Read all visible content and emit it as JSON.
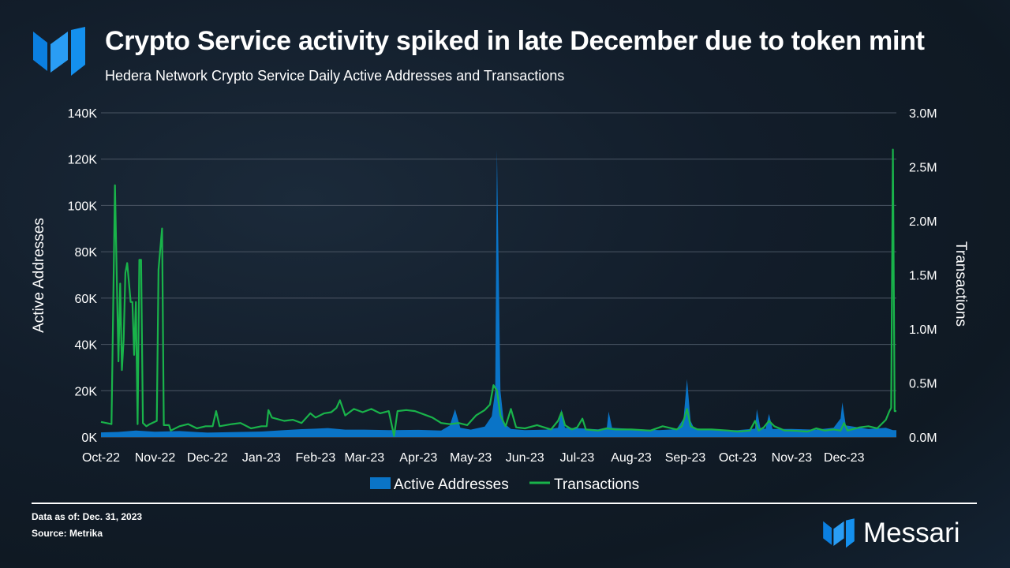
{
  "header": {
    "title": "Crypto Service activity spiked in late December due to token mint",
    "subtitle": "Hedera Network Crypto Service Daily Active Addresses and Transactions"
  },
  "footer": {
    "data_as_of": "Data as of: Dec. 31, 2023",
    "source": "Source: Metrika",
    "brand": "Messari"
  },
  "colors": {
    "active_addresses": "#0a74c7",
    "transactions": "#19b34a",
    "grid": "#4a5563",
    "text": "#ffffff"
  },
  "chart_data": {
    "type": "area+line",
    "title": "Hedera Network Crypto Service Daily Active Addresses and Transactions",
    "xlabel": "",
    "ylabel": "Active Addresses",
    "y2label": "Transactions",
    "ylim": [
      0,
      140000
    ],
    "y2lim": [
      0,
      3000000
    ],
    "yticks": [
      "0K",
      "20K",
      "40K",
      "60K",
      "80K",
      "100K",
      "120K",
      "140K"
    ],
    "y2ticks": [
      "0.0M",
      "0.5M",
      "1.0M",
      "1.5M",
      "2.0M",
      "2.5M",
      "3.0M"
    ],
    "x_range": [
      0,
      456
    ],
    "xticks": [
      {
        "label": "Oct-22",
        "x": 0
      },
      {
        "label": "Nov-22",
        "x": 31
      },
      {
        "label": "Dec-22",
        "x": 61
      },
      {
        "label": "Jan-23",
        "x": 92
      },
      {
        "label": "Feb-23",
        "x": 123
      },
      {
        "label": "Mar-23",
        "x": 151
      },
      {
        "label": "Apr-23",
        "x": 182
      },
      {
        "label": "May-23",
        "x": 212
      },
      {
        "label": "Jun-23",
        "x": 243
      },
      {
        "label": "Jul-23",
        "x": 273
      },
      {
        "label": "Aug-23",
        "x": 304
      },
      {
        "label": "Sep-23",
        "x": 335
      },
      {
        "label": "Oct-23",
        "x": 365
      },
      {
        "label": "Nov-23",
        "x": 396
      },
      {
        "label": "Dec-23",
        "x": 426
      }
    ],
    "legend": "bottom-center",
    "series": [
      {
        "name": "Active Addresses",
        "axis": "left",
        "kind": "area",
        "points": [
          [
            0,
            2000
          ],
          [
            10,
            2200
          ],
          [
            20,
            2800
          ],
          [
            31,
            2300
          ],
          [
            45,
            2600
          ],
          [
            61,
            1900
          ],
          [
            75,
            2100
          ],
          [
            92,
            2400
          ],
          [
            105,
            3000
          ],
          [
            115,
            3400
          ],
          [
            123,
            3600
          ],
          [
            130,
            3900
          ],
          [
            140,
            3200
          ],
          [
            151,
            3200
          ],
          [
            165,
            3000
          ],
          [
            182,
            3100
          ],
          [
            195,
            2800
          ],
          [
            200,
            5000
          ],
          [
            203,
            12000
          ],
          [
            206,
            4000
          ],
          [
            212,
            3200
          ],
          [
            220,
            4500
          ],
          [
            224,
            9000
          ],
          [
            226,
            20000
          ],
          [
            227,
            124000
          ],
          [
            229,
            20000
          ],
          [
            231,
            6000
          ],
          [
            235,
            3500
          ],
          [
            243,
            3000
          ],
          [
            255,
            3200
          ],
          [
            262,
            4000
          ],
          [
            264,
            12000
          ],
          [
            266,
            4000
          ],
          [
            273,
            3800
          ],
          [
            285,
            3300
          ],
          [
            290,
            4200
          ],
          [
            291,
            11000
          ],
          [
            293,
            4000
          ],
          [
            304,
            3500
          ],
          [
            320,
            3000
          ],
          [
            330,
            3400
          ],
          [
            334,
            8000
          ],
          [
            336,
            25000
          ],
          [
            338,
            7000
          ],
          [
            340,
            3800
          ],
          [
            350,
            3100
          ],
          [
            365,
            3000
          ],
          [
            375,
            3600
          ],
          [
            376,
            12000
          ],
          [
            378,
            4000
          ],
          [
            381,
            3500
          ],
          [
            383,
            10000
          ],
          [
            385,
            3500
          ],
          [
            396,
            3500
          ],
          [
            410,
            3200
          ],
          [
            420,
            4000
          ],
          [
            424,
            8000
          ],
          [
            425,
            15000
          ],
          [
            427,
            5000
          ],
          [
            440,
            3500
          ],
          [
            450,
            4000
          ],
          [
            454,
            3000
          ],
          [
            456,
            3000
          ]
        ]
      },
      {
        "name": "Transactions",
        "axis": "right",
        "kind": "line",
        "points": [
          [
            0,
            140000
          ],
          [
            6,
            120000
          ],
          [
            8,
            2330000
          ],
          [
            10,
            700000
          ],
          [
            11,
            1420000
          ],
          [
            12,
            620000
          ],
          [
            13,
            900000
          ],
          [
            14,
            1520000
          ],
          [
            15,
            1610000
          ],
          [
            17,
            1250000
          ],
          [
            18,
            1250000
          ],
          [
            19,
            760000
          ],
          [
            20,
            1250000
          ],
          [
            21,
            120000
          ],
          [
            22,
            1640000
          ],
          [
            23,
            1640000
          ],
          [
            24,
            130000
          ],
          [
            26,
            100000
          ],
          [
            28,
            120000
          ],
          [
            32,
            150000
          ],
          [
            33,
            1550000
          ],
          [
            35,
            1930000
          ],
          [
            36,
            110000
          ],
          [
            39,
            110000
          ],
          [
            40,
            60000
          ],
          [
            45,
            100000
          ],
          [
            50,
            120000
          ],
          [
            55,
            80000
          ],
          [
            60,
            100000
          ],
          [
            64,
            100000
          ],
          [
            66,
            240000
          ],
          [
            68,
            100000
          ],
          [
            75,
            120000
          ],
          [
            80,
            130000
          ],
          [
            86,
            80000
          ],
          [
            92,
            100000
          ],
          [
            95,
            100000
          ],
          [
            96,
            250000
          ],
          [
            98,
            180000
          ],
          [
            105,
            150000
          ],
          [
            110,
            160000
          ],
          [
            115,
            130000
          ],
          [
            120,
            220000
          ],
          [
            123,
            180000
          ],
          [
            128,
            220000
          ],
          [
            132,
            230000
          ],
          [
            135,
            270000
          ],
          [
            137,
            340000
          ],
          [
            140,
            200000
          ],
          [
            145,
            260000
          ],
          [
            150,
            230000
          ],
          [
            155,
            260000
          ],
          [
            160,
            220000
          ],
          [
            165,
            240000
          ],
          [
            168,
            10000
          ],
          [
            170,
            240000
          ],
          [
            175,
            250000
          ],
          [
            180,
            240000
          ],
          [
            185,
            210000
          ],
          [
            190,
            180000
          ],
          [
            195,
            130000
          ],
          [
            200,
            120000
          ],
          [
            205,
            130000
          ],
          [
            210,
            110000
          ],
          [
            215,
            200000
          ],
          [
            220,
            250000
          ],
          [
            223,
            300000
          ],
          [
            225,
            480000
          ],
          [
            227,
            430000
          ],
          [
            229,
            200000
          ],
          [
            232,
            100000
          ],
          [
            235,
            260000
          ],
          [
            238,
            90000
          ],
          [
            243,
            80000
          ],
          [
            250,
            110000
          ],
          [
            258,
            70000
          ],
          [
            262,
            150000
          ],
          [
            264,
            230000
          ],
          [
            266,
            110000
          ],
          [
            270,
            70000
          ],
          [
            273,
            90000
          ],
          [
            276,
            170000
          ],
          [
            278,
            70000
          ],
          [
            285,
            60000
          ],
          [
            290,
            80000
          ],
          [
            295,
            70000
          ],
          [
            304,
            70000
          ],
          [
            315,
            60000
          ],
          [
            322,
            100000
          ],
          [
            330,
            70000
          ],
          [
            333,
            100000
          ],
          [
            336,
            260000
          ],
          [
            338,
            100000
          ],
          [
            342,
            70000
          ],
          [
            350,
            70000
          ],
          [
            360,
            60000
          ],
          [
            365,
            50000
          ],
          [
            372,
            60000
          ],
          [
            375,
            150000
          ],
          [
            377,
            60000
          ],
          [
            380,
            90000
          ],
          [
            383,
            150000
          ],
          [
            386,
            100000
          ],
          [
            392,
            60000
          ],
          [
            396,
            60000
          ],
          [
            405,
            50000
          ],
          [
            410,
            80000
          ],
          [
            415,
            60000
          ],
          [
            420,
            70000
          ],
          [
            424,
            60000
          ],
          [
            426,
            130000
          ],
          [
            428,
            60000
          ],
          [
            435,
            90000
          ],
          [
            440,
            100000
          ],
          [
            445,
            80000
          ],
          [
            450,
            160000
          ],
          [
            452,
            240000
          ],
          [
            453,
            270000
          ],
          [
            454,
            2660000
          ],
          [
            455,
            240000
          ],
          [
            456,
            240000
          ]
        ]
      }
    ]
  }
}
